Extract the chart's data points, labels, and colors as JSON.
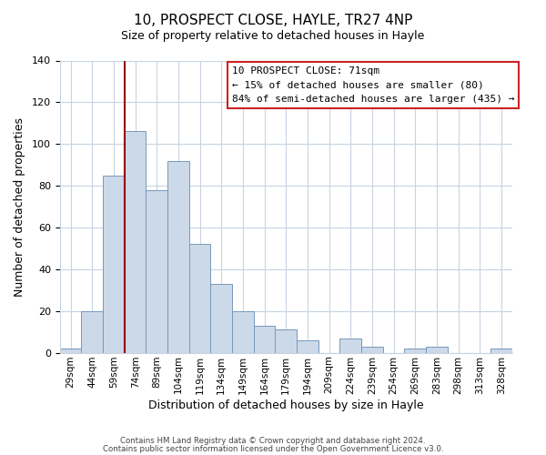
{
  "title": "10, PROSPECT CLOSE, HAYLE, TR27 4NP",
  "subtitle": "Size of property relative to detached houses in Hayle",
  "xlabel": "Distribution of detached houses by size in Hayle",
  "ylabel": "Number of detached properties",
  "bin_labels": [
    "29sqm",
    "44sqm",
    "59sqm",
    "74sqm",
    "89sqm",
    "104sqm",
    "119sqm",
    "134sqm",
    "149sqm",
    "164sqm",
    "179sqm",
    "194sqm",
    "209sqm",
    "224sqm",
    "239sqm",
    "254sqm",
    "269sqm",
    "283sqm",
    "298sqm",
    "313sqm",
    "328sqm"
  ],
  "bar_values": [
    2,
    20,
    85,
    106,
    78,
    92,
    52,
    33,
    20,
    13,
    11,
    6,
    0,
    7,
    3,
    0,
    2,
    3,
    0,
    0,
    2
  ],
  "bar_color": "#ccd9e8",
  "bar_edge_color": "#7799bb",
  "vline_color": "#990000",
  "vline_pos": 3,
  "ylim": [
    0,
    140
  ],
  "yticks": [
    0,
    20,
    40,
    60,
    80,
    100,
    120,
    140
  ],
  "annotation_title": "10 PROSPECT CLOSE: 71sqm",
  "annotation_line1": "← 15% of detached houses are smaller (80)",
  "annotation_line2": "84% of semi-detached houses are larger (435) →",
  "footer1": "Contains HM Land Registry data © Crown copyright and database right 2024.",
  "footer2": "Contains public sector information licensed under the Open Government Licence v3.0.",
  "background_color": "#ffffff",
  "grid_color": "#c8d4e0",
  "title_fontsize": 11,
  "subtitle_fontsize": 9,
  "axis_label_fontsize": 9,
  "tick_fontsize": 8,
  "xtick_fontsize": 7.5
}
